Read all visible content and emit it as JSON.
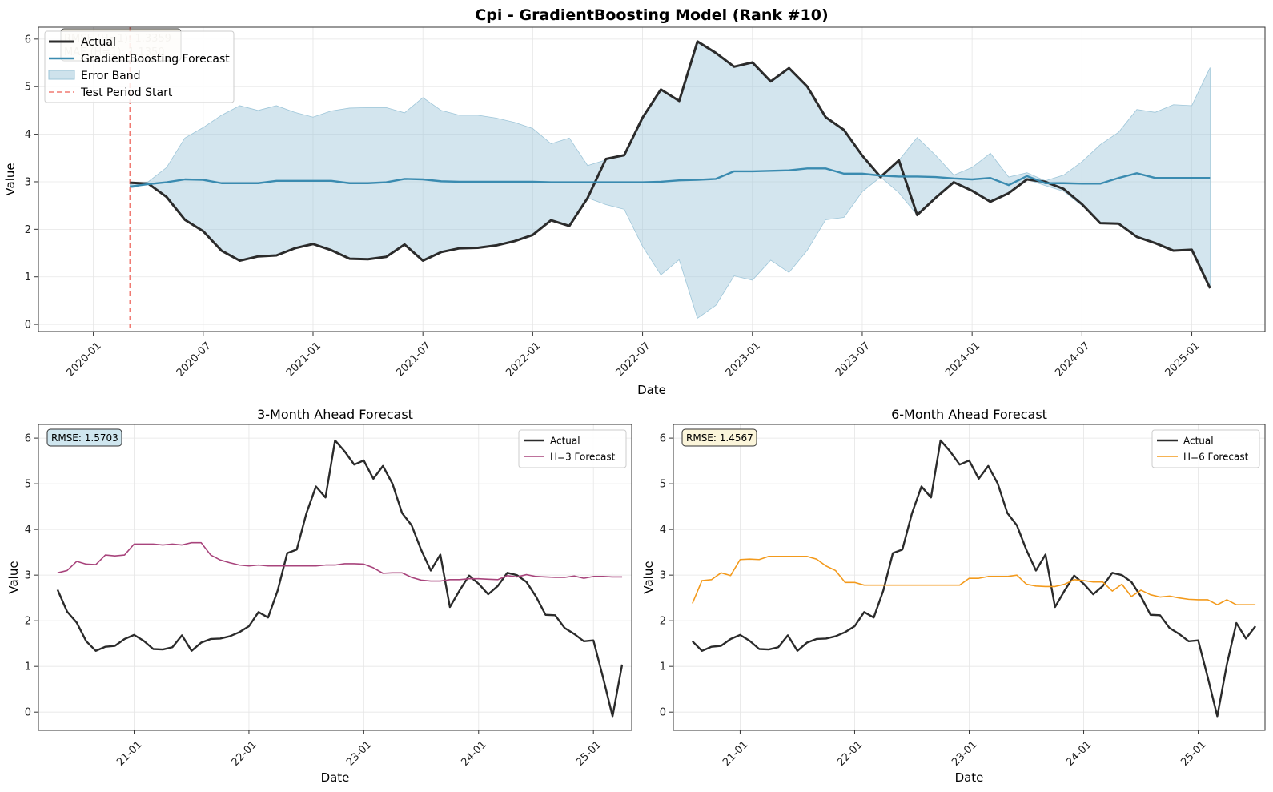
{
  "figure_title": "Cpi - GradientBoosting Model (Rank #10)",
  "colors": {
    "actual": "#2b2b2b",
    "forecast": "#3a8bb0",
    "band": "#9ec6d9",
    "test_start": "#f07a72",
    "h3": "#a8447c",
    "h6": "#f39a1c"
  },
  "chart_data": [
    {
      "type": "line",
      "title": "Cpi - GradientBoosting Model (Rank #10)",
      "xlabel": "Date",
      "ylabel": "Value",
      "x_ticks": [
        "2020-01",
        "2020-07",
        "2021-01",
        "2021-07",
        "2022-01",
        "2022-07",
        "2023-01",
        "2023-07",
        "2024-01",
        "2024-07",
        "2025-01"
      ],
      "y_ticks": [
        0,
        1,
        2,
        3,
        4,
        5,
        6
      ],
      "xlim": [
        "2019-10",
        "2025-05"
      ],
      "ylim": [
        -0.15,
        6.25
      ],
      "grid": true,
      "legend_position": "top-left",
      "test_period_start": "2020-03",
      "stats_box": [
        "RMSE (H=1): 1.3359",
        "MAE (H=1): 1.1350"
      ],
      "x": [
        "2020-03",
        "2020-04",
        "2020-05",
        "2020-06",
        "2020-07",
        "2020-08",
        "2020-09",
        "2020-10",
        "2020-11",
        "2020-12",
        "2021-01",
        "2021-02",
        "2021-03",
        "2021-04",
        "2021-05",
        "2021-06",
        "2021-07",
        "2021-08",
        "2021-09",
        "2021-10",
        "2021-11",
        "2021-12",
        "2022-01",
        "2022-02",
        "2022-03",
        "2022-04",
        "2022-05",
        "2022-06",
        "2022-07",
        "2022-08",
        "2022-09",
        "2022-10",
        "2022-11",
        "2022-12",
        "2023-01",
        "2023-02",
        "2023-03",
        "2023-04",
        "2023-05",
        "2023-06",
        "2023-07",
        "2023-08",
        "2023-09",
        "2023-10",
        "2023-11",
        "2023-12",
        "2024-01",
        "2024-02",
        "2024-03",
        "2024-04",
        "2024-05",
        "2024-06",
        "2024-07",
        "2024-08",
        "2024-09",
        "2024-10",
        "2024-11",
        "2024-12",
        "2025-01",
        "2025-02"
      ],
      "series": [
        {
          "name": "Actual",
          "values": [
            2.98,
            2.96,
            2.68,
            2.2,
            1.96,
            1.55,
            1.34,
            1.43,
            1.45,
            1.6,
            1.69,
            1.56,
            1.38,
            1.37,
            1.42,
            1.68,
            1.34,
            1.52,
            1.6,
            1.61,
            1.66,
            1.75,
            1.88,
            2.19,
            2.07,
            2.66,
            3.48,
            3.56,
            4.35,
            4.94,
            4.7,
            5.95,
            5.71,
            5.42,
            5.51,
            5.11,
            5.39,
            5.0,
            4.36,
            4.09,
            3.55,
            3.1,
            3.45,
            2.3,
            2.66,
            2.99,
            2.81,
            2.58,
            2.76,
            3.05,
            3.0,
            2.85,
            2.53,
            2.13,
            2.12,
            1.84,
            1.71,
            1.55,
            1.57,
            0.76
          ]
        },
        {
          "name": "GradientBoosting Forecast",
          "values": [
            2.9,
            2.95,
            2.99,
            3.05,
            3.04,
            2.97,
            2.97,
            2.97,
            3.02,
            3.02,
            3.02,
            3.02,
            2.97,
            2.97,
            2.99,
            3.06,
            3.05,
            3.01,
            3.0,
            3.0,
            3.0,
            3.0,
            3.0,
            2.99,
            2.99,
            2.99,
            2.99,
            2.99,
            2.99,
            3.0,
            3.03,
            3.04,
            3.06,
            3.22,
            3.22,
            3.23,
            3.24,
            3.28,
            3.28,
            3.17,
            3.17,
            3.13,
            3.11,
            3.11,
            3.1,
            3.07,
            3.05,
            3.08,
            2.93,
            3.12,
            2.97,
            2.97,
            2.96,
            2.96,
            3.08,
            3.18,
            3.08,
            3.08,
            3.08,
            3.08
          ]
        },
        {
          "name": "Error Band",
          "upper": [
            2.94,
            3.0,
            3.3,
            3.92,
            4.14,
            4.4,
            4.6,
            4.5,
            4.6,
            4.46,
            4.36,
            4.49,
            4.55,
            4.56,
            4.56,
            4.45,
            4.77,
            4.5,
            4.4,
            4.4,
            4.34,
            4.25,
            4.12,
            3.8,
            3.92,
            3.34,
            3.46,
            3.56,
            4.35,
            4.94,
            4.7,
            5.95,
            5.71,
            5.42,
            5.51,
            5.11,
            5.39,
            5.0,
            4.36,
            4.09,
            3.55,
            3.1,
            3.45,
            3.93,
            3.56,
            3.14,
            3.3,
            3.6,
            3.1,
            3.19,
            3.02,
            3.14,
            3.42,
            3.78,
            4.04,
            4.52,
            4.46,
            4.62,
            4.6,
            5.4
          ],
          "lower": [
            2.86,
            2.96,
            2.68,
            2.2,
            1.96,
            1.55,
            1.34,
            1.43,
            1.45,
            1.6,
            1.69,
            1.56,
            1.38,
            1.37,
            1.42,
            1.68,
            1.34,
            1.52,
            1.6,
            1.61,
            1.66,
            1.75,
            1.88,
            2.19,
            2.07,
            2.66,
            2.52,
            2.42,
            1.64,
            1.04,
            1.36,
            0.13,
            0.4,
            1.02,
            0.93,
            1.35,
            1.09,
            1.56,
            2.2,
            2.25,
            2.79,
            3.1,
            2.77,
            2.3,
            2.66,
            2.99,
            2.81,
            2.58,
            2.76,
            3.05,
            2.92,
            2.8,
            2.5,
            2.14,
            2.12,
            1.84,
            1.7,
            1.55,
            1.56,
            0.76
          ]
        }
      ],
      "legend": [
        "Actual",
        "GradientBoosting Forecast",
        "Error Band",
        "Test Period Start"
      ]
    },
    {
      "type": "line",
      "title": "3-Month Ahead Forecast",
      "xlabel": "Date",
      "ylabel": "Value",
      "x_ticks": [
        "21-01",
        "22-01",
        "23-01",
        "24-01",
        "25-01"
      ],
      "y_ticks": [
        0,
        1,
        2,
        3,
        4,
        5,
        6
      ],
      "xlim": [
        "2020-03",
        "2025-05"
      ],
      "ylim": [
        -0.4,
        6.3
      ],
      "grid": true,
      "legend_position": "top-right",
      "stats_box": "RMSE: 1.5703",
      "x": [
        "2020-05",
        "2020-06",
        "2020-07",
        "2020-08",
        "2020-09",
        "2020-10",
        "2020-11",
        "2020-12",
        "2021-01",
        "2021-02",
        "2021-03",
        "2021-04",
        "2021-05",
        "2021-06",
        "2021-07",
        "2021-08",
        "2021-09",
        "2021-10",
        "2021-11",
        "2021-12",
        "2022-01",
        "2022-02",
        "2022-03",
        "2022-04",
        "2022-05",
        "2022-06",
        "2022-07",
        "2022-08",
        "2022-09",
        "2022-10",
        "2022-11",
        "2022-12",
        "2023-01",
        "2023-02",
        "2023-03",
        "2023-04",
        "2023-05",
        "2023-06",
        "2023-07",
        "2023-08",
        "2023-09",
        "2023-10",
        "2023-11",
        "2023-12",
        "2024-01",
        "2024-02",
        "2024-03",
        "2024-04",
        "2024-05",
        "2024-06",
        "2024-07",
        "2024-08",
        "2024-09",
        "2024-10",
        "2024-11",
        "2024-12",
        "2025-01",
        "2025-02",
        "2025-03",
        "2025-04"
      ],
      "series": [
        {
          "name": "Actual",
          "values": [
            2.68,
            2.2,
            1.96,
            1.55,
            1.34,
            1.43,
            1.45,
            1.6,
            1.69,
            1.56,
            1.38,
            1.37,
            1.42,
            1.68,
            1.34,
            1.52,
            1.6,
            1.61,
            1.66,
            1.75,
            1.88,
            2.19,
            2.07,
            2.66,
            3.48,
            3.56,
            4.35,
            4.94,
            4.7,
            5.95,
            5.71,
            5.42,
            5.51,
            5.11,
            5.39,
            5.0,
            4.36,
            4.09,
            3.55,
            3.1,
            3.45,
            2.3,
            2.66,
            2.99,
            2.81,
            2.58,
            2.76,
            3.05,
            3.0,
            2.85,
            2.53,
            2.13,
            2.12,
            1.84,
            1.71,
            1.55,
            1.57,
            0.76,
            -0.09,
            1.04
          ]
        },
        {
          "name": "H=3 Forecast",
          "values": [
            3.05,
            3.1,
            3.3,
            3.24,
            3.23,
            3.44,
            3.42,
            3.44,
            3.68,
            3.68,
            3.68,
            3.66,
            3.68,
            3.66,
            3.71,
            3.71,
            3.44,
            3.33,
            3.27,
            3.22,
            3.2,
            3.22,
            3.2,
            3.2,
            3.2,
            3.2,
            3.2,
            3.2,
            3.22,
            3.22,
            3.25,
            3.25,
            3.24,
            3.16,
            3.04,
            3.05,
            3.05,
            2.95,
            2.89,
            2.87,
            2.87,
            2.9,
            2.9,
            2.92,
            2.92,
            2.91,
            2.9,
            2.99,
            2.96,
            3.01,
            2.97,
            2.96,
            2.95,
            2.95,
            2.98,
            2.93,
            2.97,
            2.97,
            2.96,
            2.96
          ]
        }
      ],
      "legend": [
        "Actual",
        "H=3 Forecast"
      ]
    },
    {
      "type": "line",
      "title": "6-Month Ahead Forecast",
      "xlabel": "Date",
      "ylabel": "Value",
      "x_ticks": [
        "21-01",
        "22-01",
        "23-01",
        "24-01",
        "25-01"
      ],
      "y_ticks": [
        0,
        1,
        2,
        3,
        4,
        5,
        6
      ],
      "xlim": [
        "2020-06",
        "2025-08"
      ],
      "ylim": [
        -0.4,
        6.3
      ],
      "grid": true,
      "legend_position": "top-right",
      "stats_box": "RMSE: 1.4567",
      "x": [
        "2020-08",
        "2020-09",
        "2020-10",
        "2020-11",
        "2020-12",
        "2021-01",
        "2021-02",
        "2021-03",
        "2021-04",
        "2021-05",
        "2021-06",
        "2021-07",
        "2021-08",
        "2021-09",
        "2021-10",
        "2021-11",
        "2021-12",
        "2022-01",
        "2022-02",
        "2022-03",
        "2022-04",
        "2022-05",
        "2022-06",
        "2022-07",
        "2022-08",
        "2022-09",
        "2022-10",
        "2022-11",
        "2022-12",
        "2023-01",
        "2023-02",
        "2023-03",
        "2023-04",
        "2023-05",
        "2023-06",
        "2023-07",
        "2023-08",
        "2023-09",
        "2023-10",
        "2023-11",
        "2023-12",
        "2024-01",
        "2024-02",
        "2024-03",
        "2024-04",
        "2024-05",
        "2024-06",
        "2024-07",
        "2024-08",
        "2024-09",
        "2024-10",
        "2024-11",
        "2024-12",
        "2025-01",
        "2025-02",
        "2025-03",
        "2025-04",
        "2025-05",
        "2025-06",
        "2025-07"
      ],
      "series": [
        {
          "name": "Actual",
          "values": [
            1.55,
            1.34,
            1.43,
            1.45,
            1.6,
            1.69,
            1.56,
            1.38,
            1.37,
            1.42,
            1.68,
            1.34,
            1.52,
            1.6,
            1.61,
            1.66,
            1.75,
            1.88,
            2.19,
            2.07,
            2.66,
            3.48,
            3.56,
            4.35,
            4.94,
            4.7,
            5.95,
            5.71,
            5.42,
            5.51,
            5.11,
            5.39,
            5.0,
            4.36,
            4.09,
            3.55,
            3.1,
            3.45,
            2.3,
            2.66,
            2.99,
            2.81,
            2.58,
            2.76,
            3.05,
            3.0,
            2.85,
            2.53,
            2.13,
            2.12,
            1.84,
            1.71,
            1.55,
            1.57,
            0.76,
            -0.09,
            1.04,
            1.95,
            1.61,
            1.88
          ]
        },
        {
          "name": "H=6 Forecast",
          "values": [
            2.38,
            2.88,
            2.9,
            3.05,
            2.99,
            3.34,
            3.35,
            3.34,
            3.41,
            3.41,
            3.41,
            3.41,
            3.41,
            3.35,
            3.2,
            3.1,
            2.84,
            2.84,
            2.78,
            2.78,
            2.78,
            2.78,
            2.78,
            2.78,
            2.78,
            2.78,
            2.78,
            2.78,
            2.78,
            2.93,
            2.93,
            2.97,
            2.97,
            2.97,
            3.0,
            2.8,
            2.76,
            2.75,
            2.75,
            2.8,
            2.9,
            2.88,
            2.85,
            2.85,
            2.65,
            2.8,
            2.53,
            2.67,
            2.57,
            2.52,
            2.54,
            2.5,
            2.47,
            2.46,
            2.46,
            2.35,
            2.46,
            2.35,
            2.35,
            2.35
          ]
        }
      ],
      "legend": [
        "Actual",
        "H=6 Forecast"
      ]
    }
  ]
}
